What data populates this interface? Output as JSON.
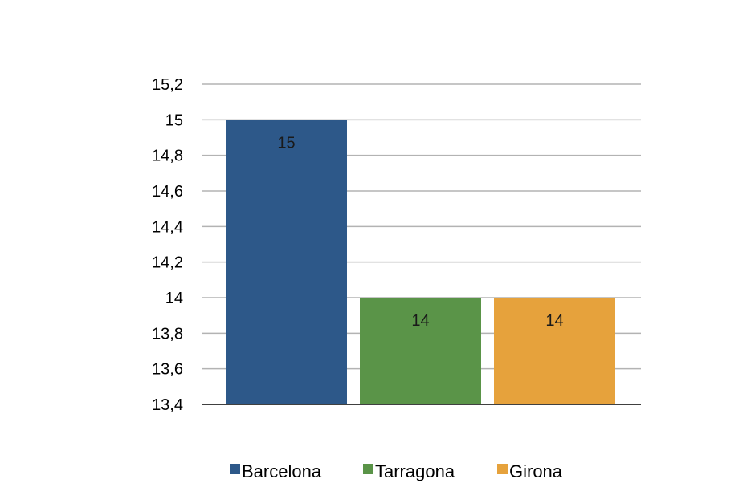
{
  "chart_data": {
    "type": "bar",
    "categories": [
      "Barcelona",
      "Tarragona",
      "Girona"
    ],
    "values": [
      15,
      14,
      14
    ],
    "data_labels": [
      "15",
      "14",
      "14"
    ],
    "colors": [
      "#2d5889",
      "#5a9448",
      "#e6a23c"
    ],
    "ylim": [
      13.4,
      15.2
    ],
    "yticks": [
      {
        "value": 13.4,
        "label": "13,4"
      },
      {
        "value": 13.6,
        "label": "13,6"
      },
      {
        "value": 13.8,
        "label": "13,8"
      },
      {
        "value": 14.0,
        "label": "14"
      },
      {
        "value": 14.2,
        "label": "14,2"
      },
      {
        "value": 14.4,
        "label": "14,4"
      },
      {
        "value": 14.6,
        "label": "14,6"
      },
      {
        "value": 14.8,
        "label": "14,8"
      },
      {
        "value": 15.0,
        "label": "15"
      },
      {
        "value": 15.2,
        "label": "15,2"
      }
    ],
    "title": "",
    "xlabel": "",
    "ylabel": "",
    "grid": true,
    "legend": "bottom",
    "legend_entries": [
      "Barcelona",
      "Tarragona",
      "Girona"
    ]
  }
}
